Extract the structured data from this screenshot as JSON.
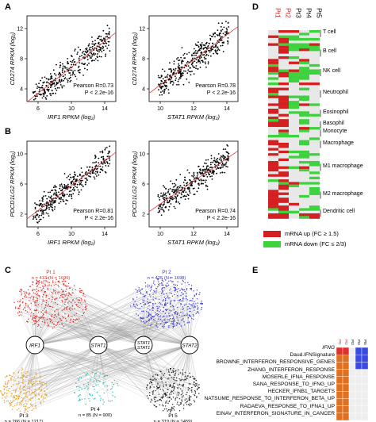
{
  "panels": {
    "A": {
      "letter": "A",
      "plots": [
        {
          "ylabel": "CD274 RPKM (log₂)",
          "xlabel": "IRF1 RPKM (log₂)",
          "stat1": "Pearson R=0.73",
          "stat2": "P < 2.2e-16",
          "xticks": [
            "6",
            "10",
            "14"
          ],
          "yticks": [
            "4",
            "8",
            "12"
          ],
          "xmin": 5.5,
          "xmax": 14.5,
          "ymin": 3.5,
          "ymax": 13.5,
          "slope": 0.9,
          "intercept": -1.5
        },
        {
          "ylabel": "CD274 RPKM (log₂)",
          "xlabel": "STAT1 RPKM (log₂)",
          "stat1": "Pearson R=0.78",
          "stat2": "P < 2.2e-16",
          "xticks": [
            "10",
            "12",
            "14"
          ],
          "yticks": [
            "4",
            "8",
            "12"
          ],
          "xmin": 9.2,
          "xmax": 15.2,
          "ymin": 3.5,
          "ymax": 13.5,
          "slope": 1.3,
          "intercept": -7.5
        }
      ]
    },
    "B": {
      "letter": "B",
      "plots": [
        {
          "ylabel": "PDCD1LG2 RPKM (log₂)",
          "xlabel": "IRF1 RPKM (log₂)",
          "stat1": "Pearson R=0.81",
          "stat2": "P < 2.2e-16",
          "xticks": [
            "6",
            "10",
            "14"
          ],
          "yticks": [
            "2",
            "6",
            "10"
          ],
          "xmin": 5.5,
          "xmax": 14.5,
          "ymin": 1,
          "ymax": 12,
          "slope": 0.95,
          "intercept": -3.2
        },
        {
          "ylabel": "PDCD1LG2 RPKM (log₂)",
          "xlabel": "STAT1 RPKM (log₂)",
          "stat1": "Pearson R=0.74",
          "stat2": "P < 2.2e-16",
          "xticks": [
            "10",
            "12",
            "14"
          ],
          "yticks": [
            "2",
            "6",
            "10"
          ],
          "xmin": 9.2,
          "xmax": 15.2,
          "ymin": 1,
          "ymax": 12,
          "slope": 1.3,
          "intercept": -9.0
        }
      ]
    },
    "C": {
      "letter": "C",
      "top_nodes": [
        {
          "title": "Pt 1",
          "count": "n = 413 (N = 1699)",
          "color": "#e0302a"
        },
        {
          "title": "Pt 2",
          "count": "n = 425 (N = 1698)",
          "color": "#3a3ad0"
        }
      ],
      "hubs": [
        "IRF1",
        "STAT1",
        "STAT1 STAT1",
        "STAT2"
      ],
      "bottom_nodes": [
        {
          "title": "Pt 3",
          "count": "n = 266 (N = 1217)",
          "color": "#e8a11c"
        },
        {
          "title": "Pt 4",
          "count": "n = 85 (N = 900)",
          "color": "#2ab8b8"
        },
        {
          "title": "Pt 5",
          "count": "n = 319 (N = 1459)",
          "color": "#222222"
        }
      ]
    },
    "D": {
      "letter": "D",
      "columns": [
        "Pt1",
        "Pt2",
        "Pt3",
        "Pt4",
        "Pt5"
      ],
      "column_colors": [
        "#d42020",
        "#d42020",
        "#000000",
        "#000000",
        "#000000"
      ],
      "cell_types": [
        "T cell",
        "B cell",
        "NK cell",
        "Neutrophil",
        "Eosinophil",
        "Basophil",
        "Monocyte",
        "Macrophage",
        "M1 macrophage",
        "M2 macrophage",
        "Dendritic cell"
      ],
      "legend": [
        {
          "label": "mRNA up (FC ≥ 1.5)",
          "color": "#d42020"
        },
        {
          "label": "mRNA down (FC ≤ 2/3)",
          "color": "#3fd23f"
        }
      ],
      "colors": {
        "up": "#d42020",
        "down": "#3fd23f",
        "none": "#e8e8e8"
      }
    },
    "E": {
      "letter": "E",
      "columns": [
        "Pt1",
        "Pt2",
        "Pt3",
        "Pt4",
        "Pt5"
      ],
      "rows": [
        "IFNG",
        "Daud.IFNSignature",
        "BROWNE_INTERFERON_RESPONSIVE_GENES",
        "ZHANG_INTERFERON_RESPONSE",
        "MOSERLE_IFNA_RESPONSE",
        "SANA_RESPONSE_TO_IFNG_UP",
        "HECKER_IFNB1_TARGETS",
        "NATSUME_RESPONSE_TO_INTERFERON_BETA_UP",
        "RADAEVA_RESPONSE_TO_IFNA1_UP",
        "EINAV_INTERFERON_SIGNATURE_IN_CANCER"
      ],
      "colors": {
        "high": "#e0701e",
        "ifng_pt12": "#e0302a",
        "ifng_pt45": "#3a4ae0",
        "none": "#eeeeee"
      }
    }
  }
}
